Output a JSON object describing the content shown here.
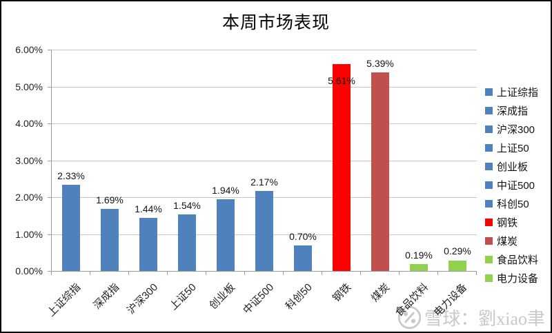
{
  "chart_data": {
    "type": "bar",
    "title": "本周市场表现",
    "categories": [
      "上证综指",
      "深成指",
      "沪深300",
      "上证50",
      "创业板",
      "中证500",
      "科创50",
      "钢铁",
      "煤炭",
      "食品饮料",
      "电力设备"
    ],
    "values": [
      2.33,
      1.69,
      1.44,
      1.54,
      1.94,
      2.17,
      0.7,
      5.61,
      5.39,
      0.19,
      0.29
    ],
    "labels": [
      "2.33%",
      "1.69%",
      "1.44%",
      "1.54%",
      "1.94%",
      "2.17%",
      "0.70%",
      "5.61%",
      "5.39%",
      "0.19%",
      "0.29%"
    ],
    "colors": [
      "#4F81BD",
      "#4F81BD",
      "#4F81BD",
      "#4F81BD",
      "#4F81BD",
      "#4F81BD",
      "#4F81BD",
      "#FF0000",
      "#C0504D",
      "#92D050",
      "#92D050"
    ],
    "ylim": [
      0,
      6
    ],
    "ytick_labels": [
      "0.00%",
      "1.00%",
      "2.00%",
      "3.00%",
      "4.00%",
      "5.00%",
      "6.00%"
    ],
    "grid": true,
    "legend_position": "right",
    "inside_label_indices": [
      7
    ]
  },
  "watermark": {
    "text": "雪球：劉xiao聿"
  },
  "style": {
    "background": "#ffffff",
    "border_color": "#000000",
    "axis_color": "#9a9a9a",
    "grid_color": "#c6c6c6",
    "watermark_color": "#c9c9c9",
    "blue": "#4F81BD",
    "red": "#FF0000",
    "brick": "#C0504D",
    "green": "#92D050"
  }
}
